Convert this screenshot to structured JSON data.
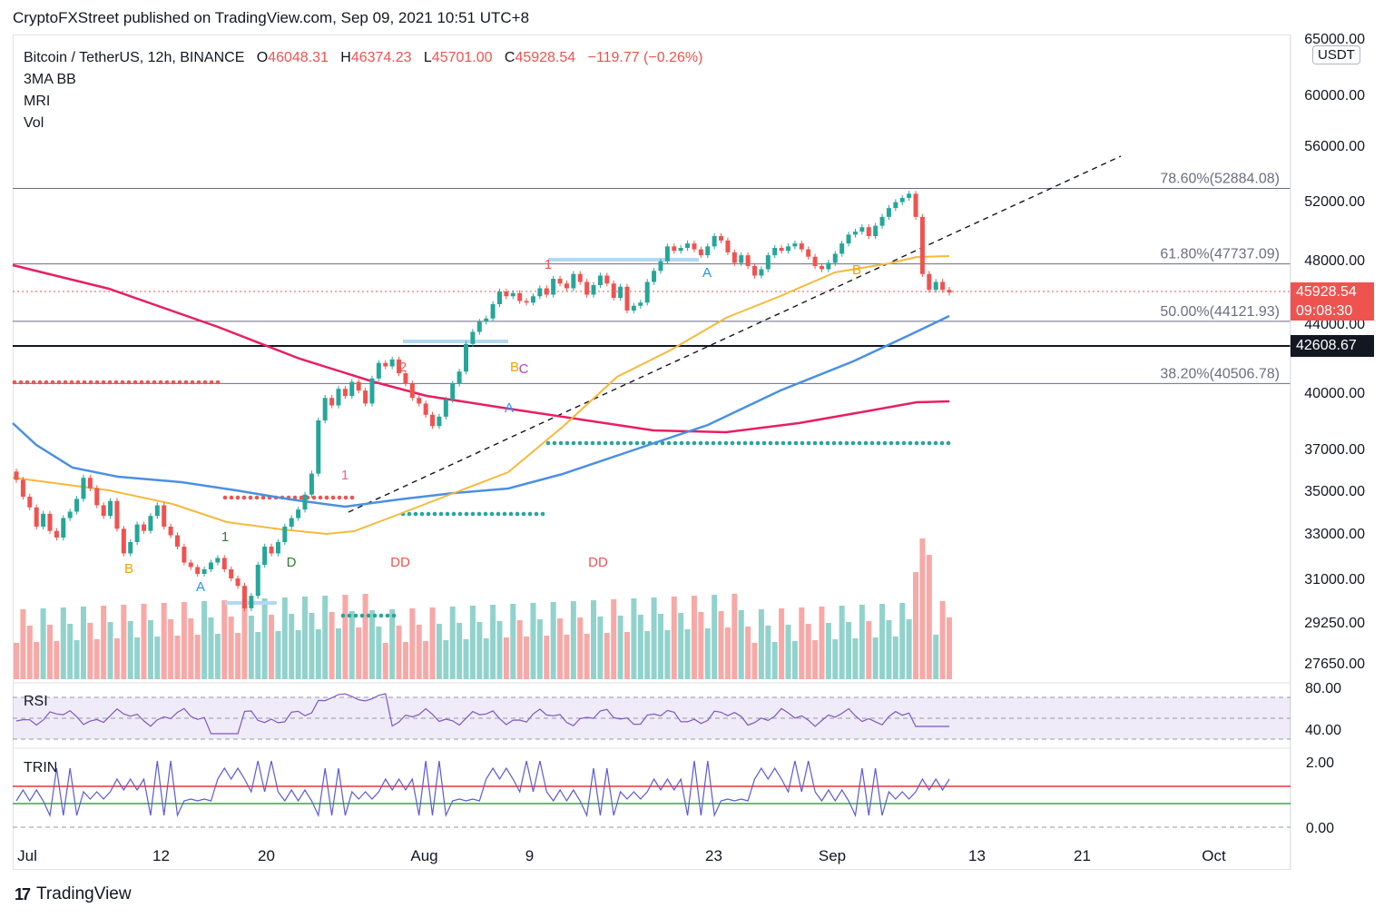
{
  "header": {
    "publisher": "CryptoFXStreet published on TradingView.com, Sep 09, 2021 10:51 UTC+8"
  },
  "legend": {
    "symbol": "Bitcoin / TetherUS, 12h, BINANCE",
    "o_label": "O",
    "o": "46048.31",
    "h_label": "H",
    "h": "46374.23",
    "l_label": "L",
    "l": "45701.00",
    "c_label": "C",
    "c": "45928.54",
    "change": "−119.77 (−0.26%)",
    "indicators": [
      "3MA BB",
      "MRI",
      "Vol"
    ]
  },
  "currency": "USDT",
  "price_badges": {
    "last": "45928.54",
    "countdown": "09:08:30",
    "level": "42608.67"
  },
  "colors": {
    "up": "#26a69a",
    "down": "#ef5350",
    "ma_blue": "#4a90e2",
    "ma_orange": "#f6b93b",
    "ma_red": "#e91e63",
    "rsi": "#7e57c2",
    "trin": "#5b5bd6"
  },
  "chart_data": [
    {
      "type": "candlestick",
      "title": "Bitcoin / TetherUS, 12h, BINANCE",
      "price_axis": {
        "ticks": [
          "65000.00",
          "60000.00",
          "56000.00",
          "52000.00",
          "48000.00",
          "44000.00",
          "40000.00",
          "37000.00",
          "35000.00",
          "33000.00",
          "31000.00",
          "29250.00",
          "27650.00"
        ],
        "scale": "log"
      },
      "time_axis": {
        "ticks": [
          "Jul",
          "12",
          "20",
          "Aug",
          "9",
          "23",
          "Sep",
          "13",
          "21",
          "Oct"
        ]
      },
      "fibonacci": [
        {
          "label": "78.60%(52884.08)",
          "value": 52884.08
        },
        {
          "label": "61.80%(47737.09)",
          "value": 47737.09
        },
        {
          "label": "50.00%(44121.93)",
          "value": 44121.93
        },
        {
          "label": "38.20%(40506.78)",
          "value": 40506.78
        }
      ],
      "horizontal_level": 42608.67,
      "last_price": 45928.54,
      "annotations": [
        "B",
        "A",
        "1",
        "D",
        "1",
        "2",
        "DD",
        "B",
        "A",
        "C",
        "1",
        "DD",
        "A",
        "B"
      ],
      "moving_averages": [
        "50 MA (orange)",
        "100 MA (blue)",
        "200 MA (red)"
      ]
    },
    {
      "type": "line",
      "title": "RSI",
      "yticks": [
        "80.00",
        "40.00"
      ]
    },
    {
      "type": "line",
      "title": "TRIN",
      "yticks": [
        "2.00",
        "0.00"
      ]
    }
  ],
  "footer": {
    "brand": "TradingView"
  }
}
